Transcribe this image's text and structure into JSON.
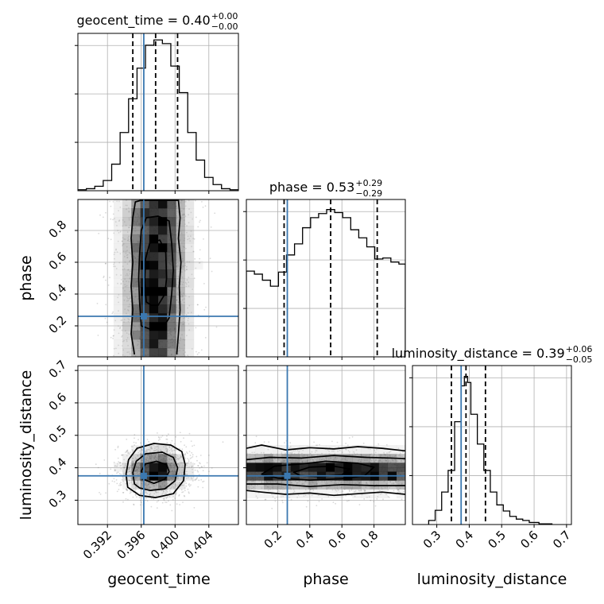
{
  "chart_data": {
    "type": "corner",
    "colors": {
      "truth": "#3b78b0",
      "hist": "#000000",
      "grid": "#b0b0b0",
      "points": "#555555"
    },
    "parameters": [
      {
        "name": "geocent_time",
        "label": "geocent_time",
        "range": [
          0.3885,
          0.4075
        ],
        "truth": 0.3963,
        "quantiles": [
          0.395,
          0.3977,
          0.4003
        ],
        "median": 0.3977,
        "title": {
          "text": "geocent_time = 0.40",
          "plus": "+0.00",
          "minus": "−0.00"
        },
        "ticks": [
          0.392,
          0.396,
          0.4,
          0.404
        ],
        "tick_labels": [
          "0.392",
          "0.396",
          "0.400",
          "0.404"
        ],
        "hist_edges": [
          0.3885,
          0.3895,
          0.3905,
          0.3915,
          0.3925,
          0.3935,
          0.3945,
          0.3955,
          0.3965,
          0.3975,
          0.3985,
          0.3995,
          0.4005,
          0.4015,
          0.4025,
          0.4035,
          0.4045,
          0.4055,
          0.4065,
          0.4075
        ],
        "hist_values": [
          0.5,
          1.0,
          2.2,
          5.0,
          13.0,
          28.5,
          45.0,
          60.0,
          71.2,
          73.8,
          72.0,
          61.0,
          48.0,
          28.5,
          15.0,
          6.5,
          3.0,
          1.0,
          0.5
        ],
        "hist_ymax": 77
      },
      {
        "name": "phase",
        "label": "phase",
        "range": [
          0.005,
          0.995
        ],
        "truth": 0.26,
        "quantiles": [
          0.24,
          0.53,
          0.82
        ],
        "median": 0.53,
        "title": {
          "text": "phase = 0.53",
          "plus": "+0.29",
          "minus": "−0.29"
        },
        "ticks": [
          0.2,
          0.4,
          0.6,
          0.8
        ],
        "tick_labels": [
          "0.2",
          "0.4",
          "0.6",
          "0.8"
        ],
        "hist_edges": [
          0.005,
          0.055,
          0.105,
          0.155,
          0.205,
          0.255,
          0.305,
          0.355,
          0.405,
          0.455,
          0.505,
          0.555,
          0.605,
          0.655,
          0.705,
          0.755,
          0.805,
          0.855,
          0.905,
          0.955,
          0.995
        ],
        "hist_values": [
          0.85,
          0.82,
          0.76,
          0.7,
          0.84,
          1.01,
          1.12,
          1.28,
          1.38,
          1.42,
          1.46,
          1.43,
          1.38,
          1.26,
          1.18,
          1.09,
          0.97,
          0.98,
          0.94,
          0.92
        ],
        "hist_ymax": 1.56
      },
      {
        "name": "luminosity_distance",
        "label": "luminosity_distance",
        "range": [
          0.225,
          0.715
        ],
        "truth": 0.375,
        "quantiles": [
          0.345,
          0.39,
          0.45
        ],
        "median": 0.39,
        "title": {
          "text": "luminosity_distance = 0.39",
          "plus": "+0.06",
          "minus": "−0.05"
        },
        "ticks": [
          0.3,
          0.4,
          0.5,
          0.6,
          0.7
        ],
        "tick_labels": [
          "0.3",
          "0.4",
          "0.5",
          "0.6",
          "0.7"
        ],
        "hist_edges": [
          0.275,
          0.295,
          0.315,
          0.335,
          0.355,
          0.375,
          0.385,
          0.395,
          0.405,
          0.425,
          0.445,
          0.465,
          0.485,
          0.505,
          0.525,
          0.545,
          0.565,
          0.585,
          0.615,
          0.655
        ],
        "hist_values": [
          0.6,
          2.1,
          4.8,
          8.0,
          15.2,
          20.5,
          21.9,
          21.0,
          16.3,
          11.9,
          8.0,
          4.8,
          2.9,
          2.0,
          1.2,
          0.8,
          0.6,
          0.3,
          0.1
        ],
        "hist_ymax": 23.5
      }
    ],
    "pairs": [
      {
        "x": "geocent_time",
        "y": "phase",
        "center": [
          0.3977,
          0.53
        ],
        "spread": [
          0.0024,
          0.26
        ],
        "y_ticks": [
          0.2,
          0.4,
          0.6,
          0.8
        ],
        "y_tick_labels": [
          "0.2",
          "0.4",
          "0.6",
          "0.8"
        ],
        "contours": [
          [
            [
              0.3952,
              0.02
            ],
            [
              0.3948,
              0.15
            ],
            [
              0.395,
              0.3
            ],
            [
              0.3948,
              0.45
            ],
            [
              0.395,
              0.6
            ],
            [
              0.3948,
              0.75
            ],
            [
              0.395,
              0.88
            ],
            [
              0.3953,
              0.98
            ],
            [
              0.396,
              0.99
            ],
            [
              0.3995,
              0.99
            ],
            [
              0.4004,
              0.99
            ],
            [
              0.4006,
              0.88
            ],
            [
              0.4004,
              0.75
            ],
            [
              0.4007,
              0.6
            ],
            [
              0.4005,
              0.45
            ],
            [
              0.4006,
              0.3
            ],
            [
              0.4004,
              0.15
            ],
            [
              0.4002,
              0.02
            ]
          ],
          [
            [
              0.396,
              0.2
            ],
            [
              0.3958,
              0.35
            ],
            [
              0.3957,
              0.5
            ],
            [
              0.3958,
              0.65
            ],
            [
              0.396,
              0.8
            ],
            [
              0.3966,
              0.88
            ],
            [
              0.398,
              0.89
            ],
            [
              0.3993,
              0.86
            ],
            [
              0.3996,
              0.72
            ],
            [
              0.3998,
              0.55
            ],
            [
              0.3996,
              0.4
            ],
            [
              0.3993,
              0.25
            ],
            [
              0.3985,
              0.18
            ],
            [
              0.397,
              0.18
            ]
          ],
          [
            [
              0.3966,
              0.35
            ],
            [
              0.3964,
              0.48
            ],
            [
              0.3965,
              0.62
            ],
            [
              0.397,
              0.72
            ],
            [
              0.3982,
              0.74
            ],
            [
              0.3989,
              0.66
            ],
            [
              0.399,
              0.5
            ],
            [
              0.3988,
              0.4
            ],
            [
              0.398,
              0.33
            ],
            [
              0.3972,
              0.33
            ]
          ]
        ]
      },
      {
        "x": "geocent_time",
        "y": "luminosity_distance",
        "center": [
          0.3977,
          0.392
        ],
        "spread": [
          0.0022,
          0.04
        ],
        "y_ticks": [
          0.3,
          0.4,
          0.5,
          0.6,
          0.7
        ],
        "y_tick_labels": [
          "0.3",
          "0.4",
          "0.5",
          "0.6",
          "0.7"
        ],
        "contours": [
          [
            [
              0.3944,
              0.34
            ],
            [
              0.3942,
              0.38
            ],
            [
              0.3945,
              0.425
            ],
            [
              0.3955,
              0.46
            ],
            [
              0.3975,
              0.475
            ],
            [
              0.3995,
              0.47
            ],
            [
              0.4008,
              0.45
            ],
            [
              0.4012,
              0.41
            ],
            [
              0.401,
              0.36
            ],
            [
              0.3998,
              0.32
            ],
            [
              0.3977,
              0.308
            ],
            [
              0.3958,
              0.315
            ]
          ],
          [
            [
              0.3952,
              0.35
            ],
            [
              0.395,
              0.385
            ],
            [
              0.3954,
              0.42
            ],
            [
              0.3965,
              0.443
            ],
            [
              0.3985,
              0.448
            ],
            [
              0.3998,
              0.432
            ],
            [
              0.4003,
              0.4
            ],
            [
              0.4,
              0.36
            ],
            [
              0.3988,
              0.335
            ],
            [
              0.397,
              0.33
            ],
            [
              0.3958,
              0.338
            ]
          ],
          [
            [
              0.3962,
              0.365
            ],
            [
              0.396,
              0.39
            ],
            [
              0.3965,
              0.412
            ],
            [
              0.3978,
              0.42
            ],
            [
              0.399,
              0.41
            ],
            [
              0.3993,
              0.388
            ],
            [
              0.3988,
              0.365
            ],
            [
              0.3975,
              0.352
            ]
          ]
        ]
      },
      {
        "x": "phase",
        "y": "luminosity_distance",
        "center": [
          0.53,
          0.39
        ],
        "spread": [
          0.28,
          0.035
        ],
        "y_ticks": [
          0.3,
          0.4,
          0.5,
          0.6,
          0.7
        ],
        "y_tick_labels": [
          "0.3",
          "0.4",
          "0.5",
          "0.6",
          "0.7"
        ],
        "contours": [
          [
            [
              0.005,
              0.46
            ],
            [
              0.1,
              0.47
            ],
            [
              0.25,
              0.455
            ],
            [
              0.4,
              0.462
            ],
            [
              0.55,
              0.458
            ],
            [
              0.7,
              0.465
            ],
            [
              0.85,
              0.46
            ],
            [
              0.995,
              0.452
            ]
          ],
          [
            [
              0.995,
              0.318
            ],
            [
              0.85,
              0.325
            ],
            [
              0.7,
              0.32
            ],
            [
              0.55,
              0.315
            ],
            [
              0.4,
              0.322
            ],
            [
              0.25,
              0.318
            ],
            [
              0.1,
              0.325
            ],
            [
              0.005,
              0.33
            ]
          ],
          [
            [
              0.005,
              0.425
            ],
            [
              0.15,
              0.432
            ],
            [
              0.35,
              0.43
            ],
            [
              0.55,
              0.438
            ],
            [
              0.75,
              0.432
            ],
            [
              0.9,
              0.43
            ],
            [
              0.995,
              0.428
            ]
          ],
          [
            [
              0.995,
              0.345
            ],
            [
              0.8,
              0.345
            ],
            [
              0.6,
              0.348
            ],
            [
              0.4,
              0.342
            ],
            [
              0.2,
              0.35
            ],
            [
              0.005,
              0.35
            ]
          ],
          [
            [
              0.1,
              0.38
            ],
            [
              0.18,
              0.405
            ],
            [
              0.35,
              0.412
            ],
            [
              0.5,
              0.42
            ],
            [
              0.7,
              0.414
            ],
            [
              0.8,
              0.402
            ],
            [
              0.74,
              0.375
            ],
            [
              0.6,
              0.366
            ],
            [
              0.4,
              0.362
            ],
            [
              0.2,
              0.368
            ]
          ],
          [
            [
              0.3,
              0.386
            ],
            [
              0.4,
              0.402
            ],
            [
              0.55,
              0.405
            ],
            [
              0.65,
              0.396
            ],
            [
              0.6,
              0.378
            ],
            [
              0.45,
              0.373
            ],
            [
              0.34,
              0.376
            ]
          ]
        ]
      }
    ]
  }
}
